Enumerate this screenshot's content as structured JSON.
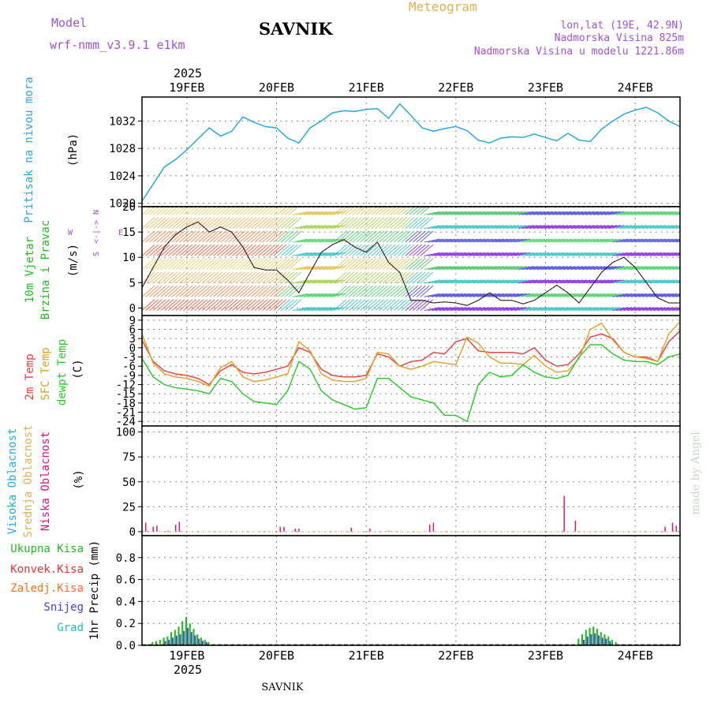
{
  "header": {
    "model_label": "Model",
    "model_name": "wrf-nmm_v3.9.1 e1km",
    "station": "SAVNIK",
    "product": "Meteogram",
    "coords": "lon,lat (19E, 42.9N)",
    "altitude": "Nadmorska Visina 825m",
    "model_altitude": "Nadmorska Visina u modelu 1221.86m",
    "footer_station": "SAVNIK",
    "watermark": "made by Angel"
  },
  "time_axis": {
    "year": "2025",
    "days": [
      "19FEB",
      "20FEB",
      "21FEB",
      "22FEB",
      "23FEB",
      "24FEB"
    ],
    "day_hours": [
      12,
      36,
      60,
      84,
      108,
      132
    ],
    "range_hours": [
      0,
      144
    ]
  },
  "colors": {
    "pressure": "#29a8e0",
    "temp2m": "#ee3b3b",
    "sfc": "#e0a020",
    "dewpt": "#22cc22",
    "high_cloud": "#20b0e0",
    "mid_cloud": "#e0b050",
    "low_cloud": "#e0147a",
    "precip_total": "#22bb22",
    "precip_conv": "#e83333",
    "precip_frz": "#ff7020",
    "snow": "#4040e0",
    "graupel": "#20c0c0",
    "wind_label": "#22bb22",
    "compass": "#a050e0"
  },
  "chart_data": [
    {
      "type": "line",
      "panel": "pressure",
      "ylabel": "Pritisak na nivou mora",
      "unit": "(hPa)",
      "ylim": [
        1019.5,
        1035.5
      ],
      "yticks": [
        1020,
        1024,
        1028,
        1032
      ],
      "grid": true,
      "series": [
        {
          "x": [
            0,
            3,
            6,
            9,
            12,
            15,
            18,
            21,
            24,
            27,
            30,
            33,
            36,
            39,
            42,
            45,
            48,
            51,
            54,
            57,
            60,
            63,
            66,
            69,
            72,
            75,
            78,
            81,
            84,
            87,
            90,
            93,
            96,
            99,
            102,
            105,
            108,
            111,
            114,
            117,
            120,
            123,
            126,
            129,
            132,
            135,
            138,
            141,
            144
          ],
          "values": [
            1020.3,
            1022.8,
            1025.3,
            1026.4,
            1027.8,
            1029.4,
            1031.0,
            1029.8,
            1030.5,
            1032.6,
            1031.8,
            1031.2,
            1031.0,
            1029.5,
            1028.8,
            1031.0,
            1032.0,
            1033.2,
            1033.5,
            1033.4,
            1033.7,
            1033.8,
            1032.4,
            1034.5,
            1032.8,
            1031.0,
            1030.5,
            1030.9,
            1031.2,
            1030.6,
            1029.2,
            1028.8,
            1029.5,
            1029.7,
            1029.6,
            1030.1,
            1029.6,
            1029.1,
            1030.2,
            1029.2,
            1029.0,
            1030.8,
            1032.0,
            1033.0,
            1033.6,
            1034.0,
            1033.2,
            1032.0,
            1031.2
          ]
        }
      ]
    },
    {
      "type": "scatter",
      "panel": "wind",
      "ylabel": "10m Vjetar Brzina i Pravac",
      "unit": "(m/s)",
      "ylim": [
        -1.5,
        20
      ],
      "yticks": [
        0,
        5,
        10,
        15,
        20
      ],
      "grid": true,
      "compass": {
        "west": "W",
        "east": "E",
        "north": "N",
        "south": "S"
      },
      "series": [
        {
          "x": [
            0,
            3,
            6,
            9,
            12,
            15,
            18,
            21,
            24,
            27,
            30,
            33,
            36,
            39,
            42,
            45,
            48,
            51,
            54,
            57,
            60,
            63,
            66,
            69,
            72,
            75,
            78,
            81,
            84,
            87,
            90,
            93,
            96,
            99,
            102,
            105,
            108,
            111,
            114,
            117,
            120,
            123,
            126,
            129,
            132,
            135,
            138,
            141,
            144
          ],
          "values": [
            4.0,
            8.0,
            12.0,
            14.5,
            16.0,
            17.0,
            15.0,
            16.0,
            15.0,
            12.0,
            8.0,
            7.5,
            7.5,
            5.5,
            3.0,
            7.0,
            11.0,
            12.5,
            13.5,
            12.0,
            11.0,
            13.0,
            9.0,
            7.0,
            1.5,
            1.5,
            1.0,
            1.2,
            1.0,
            0.5,
            1.5,
            3.0,
            1.5,
            1.5,
            0.8,
            1.5,
            3.0,
            4.5,
            3.0,
            1.0,
            4.0,
            7.0,
            9.0,
            10.0,
            8.0,
            5.0,
            2.0,
            1.0,
            1.0
          ]
        }
      ]
    },
    {
      "type": "line",
      "panel": "temperature",
      "labels": [
        "2m Temp",
        "SFC Temp",
        "dewpt Temp"
      ],
      "unit": "(C)",
      "ylim": [
        -25.5,
        10.5
      ],
      "yticks": [
        9,
        6,
        3,
        0,
        -3,
        -6,
        -9,
        -12,
        -15,
        -18,
        -21,
        -24
      ],
      "grid": true,
      "x": [
        0,
        3,
        6,
        9,
        12,
        15,
        18,
        21,
        24,
        27,
        30,
        33,
        36,
        39,
        42,
        45,
        48,
        51,
        54,
        57,
        60,
        63,
        66,
        69,
        72,
        75,
        78,
        81,
        84,
        87,
        90,
        93,
        96,
        99,
        102,
        105,
        108,
        111,
        114,
        117,
        120,
        123,
        126,
        129,
        132,
        135,
        138,
        141,
        144
      ],
      "series": [
        {
          "name": "2m Temp",
          "values": [
            2.5,
            -4.5,
            -7.5,
            -8.5,
            -9.0,
            -10.0,
            -12.0,
            -7.5,
            -5.5,
            -8.0,
            -8.5,
            -8.0,
            -7.0,
            -6.0,
            0.0,
            -1.5,
            -7.0,
            -9.0,
            -9.5,
            -9.5,
            -9.0,
            -2.0,
            -3.0,
            -6.0,
            -4.5,
            -4.0,
            -1.5,
            -2.0,
            2.0,
            3.0,
            -1.0,
            -1.5,
            -1.5,
            -1.5,
            -2.0,
            0.0,
            -4.0,
            -6.0,
            -5.5,
            -2.0,
            3.5,
            4.5,
            3.0,
            -1.5,
            -3.0,
            -3.0,
            -4.5,
            2.0,
            5.5
          ]
        },
        {
          "name": "SFC Temp",
          "values": [
            4.5,
            -5.0,
            -8.5,
            -9.5,
            -10.0,
            -11.0,
            -12.5,
            -6.5,
            -4.5,
            -9.5,
            -11.0,
            -10.5,
            -9.5,
            -8.5,
            2.0,
            -1.0,
            -8.5,
            -10.5,
            -11.0,
            -11.0,
            -10.0,
            -1.5,
            -2.0,
            -6.0,
            -7.0,
            -6.0,
            -4.5,
            -5.0,
            -5.5,
            3.5,
            1.5,
            -3.0,
            -5.0,
            -5.0,
            -5.5,
            -2.5,
            -6.0,
            -8.0,
            -7.5,
            -3.5,
            6.0,
            8.0,
            2.5,
            -1.5,
            -3.0,
            -3.5,
            -4.5,
            4.5,
            8.5
          ]
        },
        {
          "name": "dewpt Temp",
          "values": [
            -3.5,
            -9.5,
            -12.0,
            -13.0,
            -13.5,
            -14.0,
            -15.0,
            -10.0,
            -11.0,
            -15.0,
            -17.5,
            -18.0,
            -18.5,
            -14.0,
            -4.5,
            -7.0,
            -14.0,
            -17.0,
            -18.5,
            -20.0,
            -19.5,
            -10.0,
            -10.0,
            -13.0,
            -16.0,
            -17.0,
            -18.0,
            -22.0,
            -22.0,
            -24.0,
            -12.0,
            -8.0,
            -9.5,
            -9.0,
            -5.5,
            -8.0,
            -9.5,
            -10.0,
            -9.0,
            -3.0,
            1.0,
            1.0,
            -2.0,
            -4.0,
            -4.5,
            -4.5,
            -5.5,
            -3.0,
            -2.0
          ]
        }
      ]
    },
    {
      "type": "bar",
      "panel": "cloud",
      "labels": [
        "Visoka Oblacnost",
        "Srednja Oblacnost",
        "Niska Oblacnost"
      ],
      "unit": "(%)",
      "ylim": [
        -4,
        106
      ],
      "yticks": [
        0,
        25,
        50,
        75,
        100
      ],
      "grid": true,
      "series": [
        {
          "name": "Niska Oblacnost",
          "x": [
            1,
            3,
            4,
            7,
            9,
            10,
            37,
            38,
            41,
            42,
            56,
            61,
            66,
            77,
            78,
            113,
            116,
            140,
            142,
            143
          ],
          "values": [
            9,
            5,
            6,
            1,
            7,
            10,
            5,
            5,
            3,
            3,
            4,
            3,
            1,
            7,
            9,
            36,
            11,
            5,
            9,
            6
          ]
        }
      ]
    },
    {
      "type": "bar",
      "panel": "precip",
      "labels": [
        "Ukupna Kisa",
        "Konvek.Kisa",
        "Zaledj.Kisa",
        "Snijeg",
        "Grad"
      ],
      "ylabel": "1hr Precip (mm)",
      "ylim": [
        0,
        1.0
      ],
      "yticks": [
        0,
        0.2,
        0.4,
        0.6,
        0.8
      ],
      "grid": true,
      "series": [
        {
          "name": "Ukupna Kisa",
          "x": [
            3,
            4,
            5,
            6,
            7,
            8,
            9,
            10,
            11,
            12,
            13,
            14,
            15,
            16,
            17,
            18,
            117,
            118,
            119,
            120,
            121,
            122,
            123,
            124,
            125,
            126,
            127
          ],
          "values": [
            0.03,
            0.04,
            0.05,
            0.07,
            0.08,
            0.12,
            0.14,
            0.17,
            0.22,
            0.26,
            0.2,
            0.15,
            0.1,
            0.07,
            0.05,
            0.03,
            0.06,
            0.1,
            0.14,
            0.16,
            0.17,
            0.15,
            0.12,
            0.1,
            0.08,
            0.05,
            0.03
          ]
        },
        {
          "name": "Snijeg",
          "x": [
            6,
            7,
            8,
            9,
            10,
            11,
            12,
            13,
            14,
            15,
            16,
            17,
            118,
            119,
            120,
            121,
            122,
            123,
            124,
            125
          ],
          "values": [
            0.04,
            0.05,
            0.07,
            0.09,
            0.1,
            0.13,
            0.16,
            0.12,
            0.09,
            0.06,
            0.04,
            0.03,
            0.05,
            0.08,
            0.1,
            0.11,
            0.09,
            0.07,
            0.06,
            0.04
          ]
        }
      ]
    }
  ]
}
